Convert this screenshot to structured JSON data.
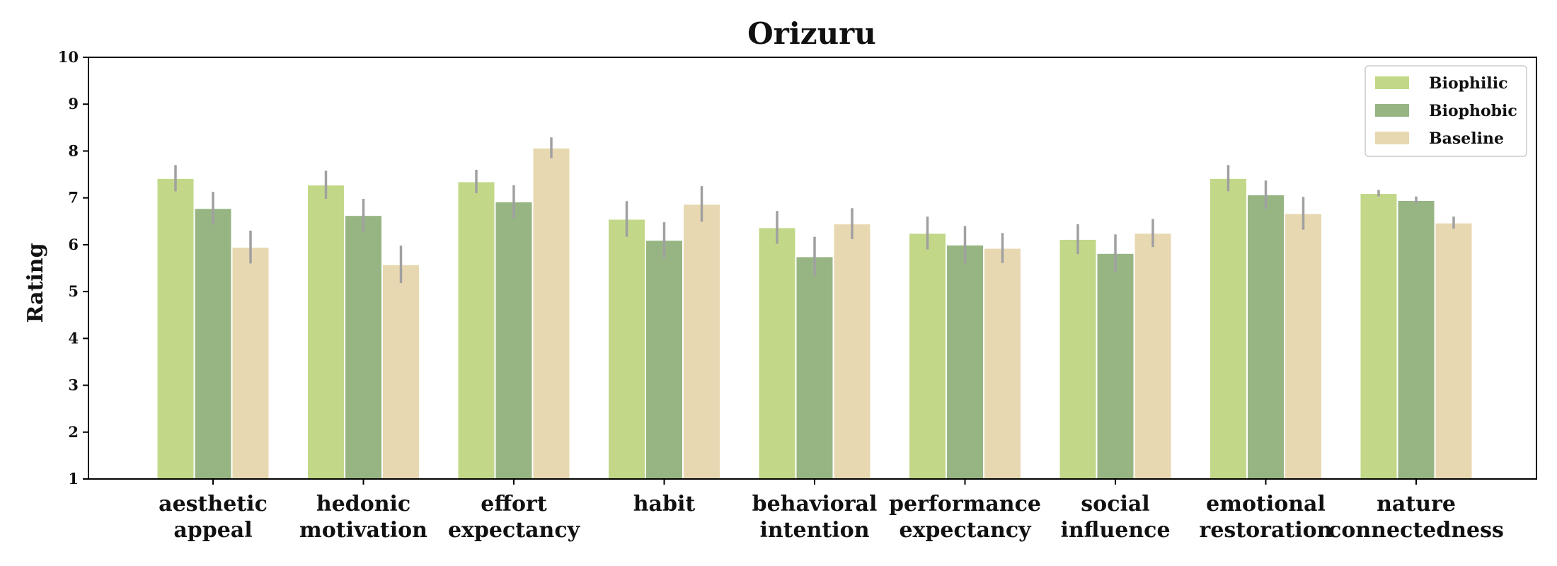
{
  "chart_data": {
    "type": "bar",
    "title": "Orizuru",
    "xlabel": "",
    "ylabel": "Rating",
    "ylim": [
      1,
      10
    ],
    "yticks": [
      1,
      2,
      3,
      4,
      5,
      6,
      7,
      8,
      9,
      10
    ],
    "grid": false,
    "legend_position": "top-right",
    "categories": [
      [
        "aesthetic",
        "appeal"
      ],
      [
        "hedonic",
        "motivation"
      ],
      [
        "effort",
        "expectancy"
      ],
      [
        "habit"
      ],
      [
        "behavioral",
        "intention"
      ],
      [
        "performance",
        "expectancy"
      ],
      [
        "social",
        "influence"
      ],
      [
        "emotional",
        "restoration"
      ],
      [
        "nature",
        "connectedness"
      ]
    ],
    "series": [
      {
        "name": "Biophilic",
        "color": "#c2d888",
        "values": [
          7.42,
          7.28,
          7.35,
          6.55,
          6.37,
          6.25,
          6.12,
          7.42,
          7.1
        ],
        "error": [
          0.28,
          0.3,
          0.25,
          0.38,
          0.35,
          0.35,
          0.32,
          0.28,
          0.07
        ]
      },
      {
        "name": "Biophobic",
        "color": "#97b583",
        "values": [
          6.78,
          6.63,
          6.92,
          6.1,
          5.75,
          6.0,
          5.82,
          7.07,
          6.95
        ],
        "error": [
          0.35,
          0.35,
          0.35,
          0.38,
          0.42,
          0.4,
          0.4,
          0.3,
          0.08
        ]
      },
      {
        "name": "Baseline",
        "color": "#e8d8b1",
        "values": [
          5.95,
          5.58,
          8.07,
          6.87,
          6.45,
          5.93,
          6.25,
          6.67,
          6.47
        ],
        "error": [
          0.35,
          0.4,
          0.22,
          0.38,
          0.33,
          0.32,
          0.3,
          0.35,
          0.13
        ]
      }
    ],
    "error_color": "#a0a0a0"
  }
}
